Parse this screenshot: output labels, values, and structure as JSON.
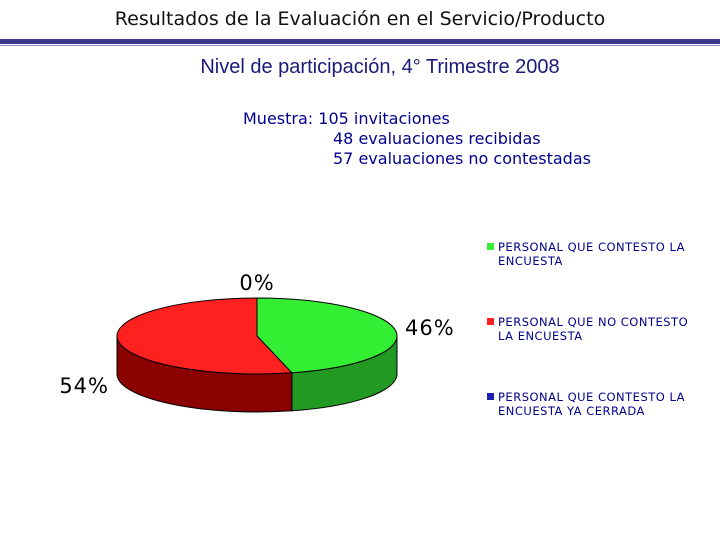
{
  "header": {
    "title": "Resultados de la Evaluación en el Servicio/Producto"
  },
  "chart_data": {
    "type": "pie",
    "title": "Nivel de participación, 4° Trimestre 2008",
    "subtitle_lines": [
      "Muestra: 105 invitaciones",
      "48 evaluaciones recibidas",
      "57 evaluaciones no contestadas"
    ],
    "slices": [
      {
        "label": "PERSONAL QUE CONTESTO LA ENCUESTA",
        "value": 46,
        "display": "46%",
        "color": "#33ee33",
        "side_color": "#229922"
      },
      {
        "label": "PERSONAL QUE NO CONTESTO LA ENCUESTA",
        "value": 54,
        "display": "54%",
        "color": "#ff2020",
        "side_color": "#8b0000"
      },
      {
        "label": "PERSONAL QUE CONTESTO LA ENCUESTA YA CERRADA",
        "value": 0,
        "display": "0%",
        "color": "#1f1fb0",
        "side_color": "#0a0a70"
      }
    ]
  }
}
